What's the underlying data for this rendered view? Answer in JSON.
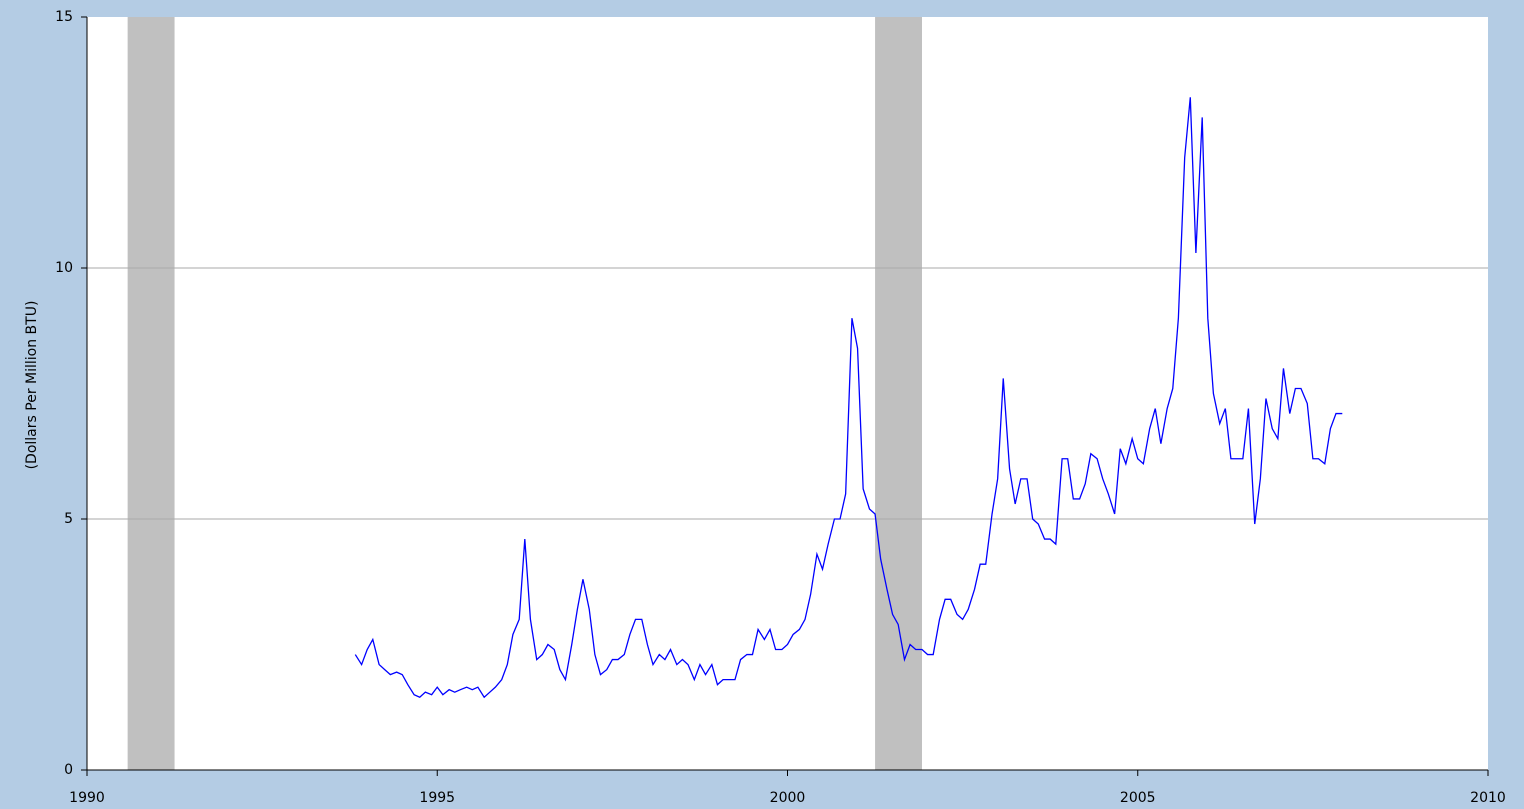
{
  "chart_data": {
    "type": "line",
    "ylabel": "(Dollars Per Million BTU)",
    "xlim": [
      1990,
      2010
    ],
    "xticks": [
      1990,
      1995,
      2000,
      2005,
      2010
    ],
    "ylim": [
      0,
      15
    ],
    "yticks": [
      0,
      5,
      10,
      15
    ],
    "grid": true,
    "shaded_periods": [
      [
        1990.58,
        1991.25
      ],
      [
        2001.25,
        2001.92
      ]
    ],
    "shade_color": "#c0c0c0",
    "x": [
      1993.83,
      1993.92,
      1994.0,
      1994.08,
      1994.17,
      1994.25,
      1994.33,
      1994.42,
      1994.5,
      1994.58,
      1994.67,
      1994.75,
      1994.83,
      1994.92,
      1995.0,
      1995.08,
      1995.17,
      1995.25,
      1995.33,
      1995.42,
      1995.5,
      1995.58,
      1995.67,
      1995.75,
      1995.83,
      1995.92,
      1996.0,
      1996.08,
      1996.17,
      1996.25,
      1996.33,
      1996.42,
      1996.5,
      1996.58,
      1996.67,
      1996.75,
      1996.83,
      1996.92,
      1997.0,
      1997.08,
      1997.17,
      1997.25,
      1997.33,
      1997.42,
      1997.5,
      1997.58,
      1997.67,
      1997.75,
      1997.83,
      1997.92,
      1998.0,
      1998.08,
      1998.17,
      1998.25,
      1998.33,
      1998.42,
      1998.5,
      1998.58,
      1998.67,
      1998.75,
      1998.83,
      1998.92,
      1999.0,
      1999.08,
      1999.17,
      1999.25,
      1999.33,
      1999.42,
      1999.5,
      1999.58,
      1999.67,
      1999.75,
      1999.83,
      1999.92,
      2000.0,
      2000.08,
      2000.17,
      2000.25,
      2000.33,
      2000.42,
      2000.5,
      2000.58,
      2000.67,
      2000.75,
      2000.83,
      2000.92,
      2001.0,
      2001.08,
      2001.17,
      2001.25,
      2001.33,
      2001.42,
      2001.5,
      2001.58,
      2001.67,
      2001.75,
      2001.83,
      2001.92,
      2002.0,
      2002.08,
      2002.17,
      2002.25,
      2002.33,
      2002.42,
      2002.5,
      2002.58,
      2002.67,
      2002.75,
      2002.83,
      2002.92,
      2003.0,
      2003.08,
      2003.17,
      2003.25,
      2003.33,
      2003.42,
      2003.5,
      2003.58,
      2003.67,
      2003.75,
      2003.83,
      2003.92,
      2004.0,
      2004.08,
      2004.17,
      2004.25,
      2004.33,
      2004.42,
      2004.5,
      2004.58,
      2004.67,
      2004.75,
      2004.83,
      2004.92,
      2005.0,
      2005.08,
      2005.17,
      2005.25,
      2005.33,
      2005.42,
      2005.5,
      2005.58,
      2005.67,
      2005.75,
      2005.83,
      2005.92,
      2006.0,
      2006.08,
      2006.17,
      2006.25,
      2006.33,
      2006.42,
      2006.5,
      2006.58,
      2006.67,
      2006.75,
      2006.83,
      2006.92,
      2007.0,
      2007.08,
      2007.17,
      2007.25,
      2007.33,
      2007.42,
      2007.5,
      2007.58,
      2007.67,
      2007.75,
      2007.83,
      2007.92
    ],
    "series": [
      {
        "color": "#0000ff",
        "values": [
          2.3,
          2.1,
          2.4,
          2.6,
          2.1,
          2.0,
          1.9,
          1.95,
          1.9,
          1.7,
          1.5,
          1.45,
          1.55,
          1.5,
          1.65,
          1.5,
          1.6,
          1.55,
          1.6,
          1.65,
          1.6,
          1.65,
          1.45,
          1.55,
          1.65,
          1.8,
          2.1,
          2.7,
          3.0,
          4.6,
          3.0,
          2.2,
          2.3,
          2.5,
          2.4,
          2.0,
          1.8,
          2.5,
          3.2,
          3.8,
          3.2,
          2.3,
          1.9,
          2.0,
          2.2,
          2.2,
          2.3,
          2.7,
          3.0,
          3.0,
          2.5,
          2.1,
          2.3,
          2.2,
          2.4,
          2.1,
          2.2,
          2.1,
          1.8,
          2.1,
          1.9,
          2.1,
          1.7,
          1.8,
          1.8,
          1.8,
          2.2,
          2.3,
          2.3,
          2.8,
          2.6,
          2.8,
          2.4,
          2.4,
          2.5,
          2.7,
          2.8,
          3.0,
          3.5,
          4.3,
          4.0,
          4.5,
          5.0,
          5.0,
          5.5,
          9.0,
          8.4,
          5.6,
          5.2,
          5.1,
          4.2,
          3.6,
          3.1,
          2.9,
          2.2,
          2.5,
          2.4,
          2.4,
          2.3,
          2.3,
          3.0,
          3.4,
          3.4,
          3.1,
          3.0,
          3.2,
          3.6,
          4.1,
          4.1,
          5.1,
          5.8,
          7.8,
          6.0,
          5.3,
          5.8,
          5.8,
          5.0,
          4.9,
          4.6,
          4.6,
          4.5,
          6.2,
          6.2,
          5.4,
          5.4,
          5.7,
          6.3,
          6.2,
          5.8,
          5.5,
          5.1,
          6.4,
          6.1,
          6.6,
          6.2,
          6.1,
          6.8,
          7.2,
          6.5,
          7.2,
          7.6,
          9.0,
          12.2,
          13.4,
          10.3,
          13.0,
          9.0,
          7.5,
          6.9,
          7.2,
          6.2,
          6.2,
          6.2,
          7.2,
          4.9,
          5.8,
          7.4,
          6.8,
          6.6,
          8.0,
          7.1,
          7.6,
          7.6,
          7.3,
          6.2,
          6.2,
          6.1,
          6.8,
          7.1,
          7.1
        ]
      }
    ]
  }
}
